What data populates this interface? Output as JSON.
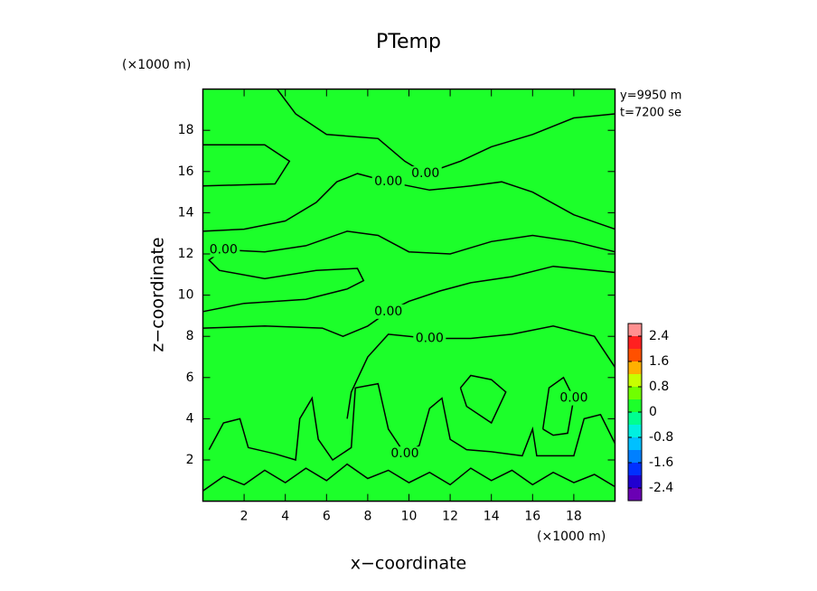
{
  "chart_data": {
    "type": "contour",
    "title": "PTemp",
    "xlabel": "x−coordinate",
    "ylabel": "z−coordinate",
    "x_unit": "(×1000 m)",
    "y_unit": "(×1000 m)",
    "info": [
      "y=9950 m",
      "t=7200 se"
    ],
    "xlim": [
      0,
      20
    ],
    "ylim": [
      0,
      20
    ],
    "xticks": [
      2,
      4,
      6,
      8,
      10,
      12,
      14,
      16,
      18
    ],
    "yticks": [
      2,
      4,
      6,
      8,
      10,
      12,
      14,
      16,
      18
    ],
    "fill_color": "#1cff2a",
    "line_color": "#000000",
    "contours": [
      {
        "level": 0,
        "label": "0.00",
        "x": [
          3.6,
          4.5,
          6,
          8.5,
          9.8,
          10.8,
          12.5,
          14,
          16,
          18,
          20
        ],
        "y": [
          20,
          18.8,
          17.8,
          17.6,
          16.5,
          15.9,
          16.5,
          17.2,
          17.8,
          18.6,
          18.8
        ]
      },
      {
        "level": 0,
        "x": [
          0,
          3,
          4.2,
          3.5,
          0
        ],
        "y": [
          17.3,
          17.3,
          16.5,
          15.4,
          15.3
        ]
      },
      {
        "level": 0,
        "label": "0.00",
        "x": [
          20,
          18,
          16,
          14.5,
          13,
          11,
          9,
          7.5,
          6.5,
          5.5,
          4,
          2,
          0
        ],
        "y": [
          13.2,
          13.9,
          15,
          15.5,
          15.3,
          15.1,
          15.5,
          15.9,
          15.5,
          14.5,
          13.6,
          13.2,
          13.1
        ]
      },
      {
        "level": 0,
        "label": "0.00",
        "x": [
          20,
          18,
          16,
          14,
          12,
          10,
          8.5,
          7,
          5,
          3,
          1,
          0.3,
          0.8,
          3,
          5.5,
          7.5,
          7.8,
          7,
          5,
          2,
          0
        ],
        "y": [
          12.1,
          12.6,
          12.9,
          12.6,
          12,
          12.1,
          12.9,
          13.1,
          12.4,
          12.1,
          12.2,
          11.7,
          11.2,
          10.8,
          11.2,
          11.3,
          10.7,
          10.3,
          9.8,
          9.6,
          9.2
        ]
      },
      {
        "level": 0,
        "label": "0.00",
        "x": [
          20,
          17,
          15,
          13,
          11.5,
          10,
          9,
          8,
          6.8,
          5.8,
          3,
          0
        ],
        "y": [
          11.1,
          11.4,
          10.9,
          10.6,
          10.2,
          9.7,
          9.2,
          8.5,
          8,
          8.4,
          8.5,
          8.4
        ]
      },
      {
        "level": 0,
        "label": "0.00",
        "x": [
          20,
          19,
          17,
          15,
          13,
          11,
          9,
          8,
          7.2,
          7
        ],
        "y": [
          6.5,
          8,
          8.5,
          8.1,
          7.9,
          7.9,
          8.1,
          7,
          5.3,
          4
        ]
      },
      {
        "level": 0,
        "x": [
          12.5,
          13,
          14,
          14.7,
          14,
          12.8,
          12.5
        ],
        "y": [
          5.5,
          6.1,
          5.9,
          5.3,
          3.8,
          4.6,
          5.5
        ]
      },
      {
        "level": 0,
        "label": "0.00",
        "x": [
          16.5,
          16.8,
          17.5,
          18,
          17.7,
          17,
          16.5
        ],
        "y": [
          3.5,
          5.5,
          6,
          5,
          3.3,
          3.2,
          3.5
        ]
      },
      {
        "level": 0,
        "label": "0.00",
        "x": [
          0.3,
          1,
          1.8,
          2.2,
          3.5,
          4.5,
          4.7,
          5.3,
          5.6,
          6.3,
          7.2,
          7.4,
          8.5,
          9,
          9.8,
          10.5,
          11,
          11.6,
          12,
          12.8,
          14,
          15.5,
          16,
          16.2,
          18,
          18.5,
          19.3,
          20
        ],
        "y": [
          2.5,
          3.8,
          4,
          2.6,
          2.3,
          2,
          4,
          5,
          3,
          2,
          2.6,
          5.5,
          5.7,
          3.5,
          2.3,
          2.7,
          4.5,
          5,
          3,
          2.5,
          2.4,
          2.2,
          3.5,
          2.2,
          2.2,
          4,
          4.2,
          2.8
        ]
      },
      {
        "level": 0,
        "x": [
          0,
          1,
          2,
          3,
          4,
          5,
          6,
          7,
          8,
          9,
          10,
          11,
          12,
          13,
          14,
          15,
          16,
          17,
          18,
          19,
          20
        ],
        "y": [
          0.5,
          1.2,
          0.8,
          1.5,
          0.9,
          1.6,
          1,
          1.8,
          1.1,
          1.5,
          0.9,
          1.4,
          0.8,
          1.6,
          1,
          1.5,
          0.8,
          1.4,
          0.9,
          1.3,
          0.7
        ]
      }
    ],
    "colorbar": {
      "bins": [
        -2.8,
        -2.4,
        -2,
        -1.6,
        -1.2,
        -0.8,
        -0.4,
        0,
        0.4,
        0.8,
        1.2,
        1.6,
        2,
        2.4,
        2.8
      ],
      "colors": [
        "#6a00b4",
        "#2000d0",
        "#0030ff",
        "#0080ff",
        "#00c0ff",
        "#00f0e0",
        "#00ff90",
        "#1cff2a",
        "#70ff00",
        "#c8ff00",
        "#ffb000",
        "#ff5000",
        "#ff2020",
        "#ff9090"
      ],
      "ticks": [
        2.4,
        1.6,
        0.8,
        0,
        -0.8,
        -1.6,
        -2.4
      ]
    }
  }
}
